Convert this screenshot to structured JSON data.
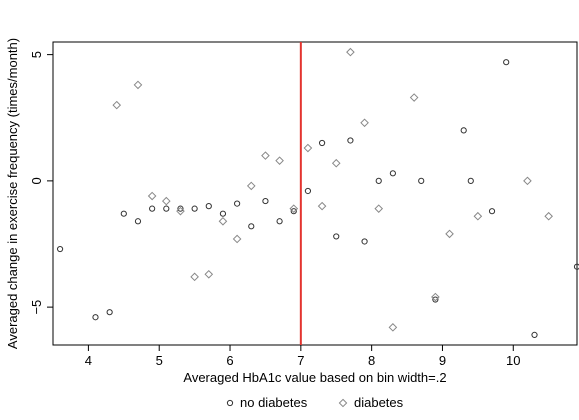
{
  "chart_data": {
    "type": "scatter",
    "xlabel": "Averaged HbA1c value based on bin width=.2",
    "ylabel": "Averaged change in exercise frequency (times/month)",
    "xlim": [
      3.5,
      10.9
    ],
    "ylim": [
      -6.5,
      5.5
    ],
    "x_ticks": [
      4,
      5,
      6,
      7,
      8,
      9,
      10
    ],
    "y_ticks": [
      -5,
      0,
      5
    ],
    "grid": false,
    "legend_position": "bottom-center",
    "reference_line": {
      "x": 7,
      "color": "#e3342f"
    },
    "series": [
      {
        "name": "no diabetes",
        "marker": "circle",
        "color": "#333333",
        "points": [
          [
            3.6,
            -2.7
          ],
          [
            4.1,
            -5.4
          ],
          [
            4.3,
            -5.2
          ],
          [
            4.5,
            -1.3
          ],
          [
            4.7,
            -1.6
          ],
          [
            4.9,
            -1.1
          ],
          [
            5.1,
            -1.1
          ],
          [
            5.3,
            -1.1
          ],
          [
            5.5,
            -1.1
          ],
          [
            5.7,
            -1.0
          ],
          [
            5.9,
            -1.3
          ],
          [
            6.1,
            -0.9
          ],
          [
            6.3,
            -1.8
          ],
          [
            6.5,
            -0.8
          ],
          [
            6.7,
            -1.6
          ],
          [
            6.9,
            -1.2
          ],
          [
            7.1,
            -0.4
          ],
          [
            7.3,
            1.5
          ],
          [
            7.5,
            -2.2
          ],
          [
            7.7,
            1.6
          ],
          [
            7.9,
            -2.4
          ],
          [
            8.1,
            0.0
          ],
          [
            8.3,
            0.3
          ],
          [
            8.7,
            0.0
          ],
          [
            8.9,
            -4.7
          ],
          [
            9.3,
            2.0
          ],
          [
            9.4,
            0.0
          ],
          [
            9.7,
            -1.2
          ],
          [
            9.9,
            4.7
          ],
          [
            10.3,
            -6.1
          ],
          [
            10.9,
            -3.4
          ]
        ]
      },
      {
        "name": "diabetes",
        "marker": "diamond",
        "color": "#888888",
        "points": [
          [
            4.4,
            3.0
          ],
          [
            4.7,
            3.8
          ],
          [
            4.9,
            -0.6
          ],
          [
            5.1,
            -0.8
          ],
          [
            5.3,
            -1.2
          ],
          [
            5.5,
            -3.8
          ],
          [
            5.7,
            -3.7
          ],
          [
            5.9,
            -1.6
          ],
          [
            6.1,
            -2.3
          ],
          [
            6.3,
            -0.2
          ],
          [
            6.5,
            1.0
          ],
          [
            6.7,
            0.8
          ],
          [
            6.9,
            -1.1
          ],
          [
            7.1,
            1.3
          ],
          [
            7.3,
            -1.0
          ],
          [
            7.5,
            0.7
          ],
          [
            7.7,
            5.1
          ],
          [
            7.9,
            2.3
          ],
          [
            8.1,
            -1.1
          ],
          [
            8.3,
            -5.8
          ],
          [
            8.6,
            3.3
          ],
          [
            8.9,
            -4.6
          ],
          [
            9.1,
            -2.1
          ],
          [
            9.5,
            -1.4
          ],
          [
            10.2,
            0.0
          ],
          [
            10.5,
            -1.4
          ]
        ]
      }
    ]
  }
}
